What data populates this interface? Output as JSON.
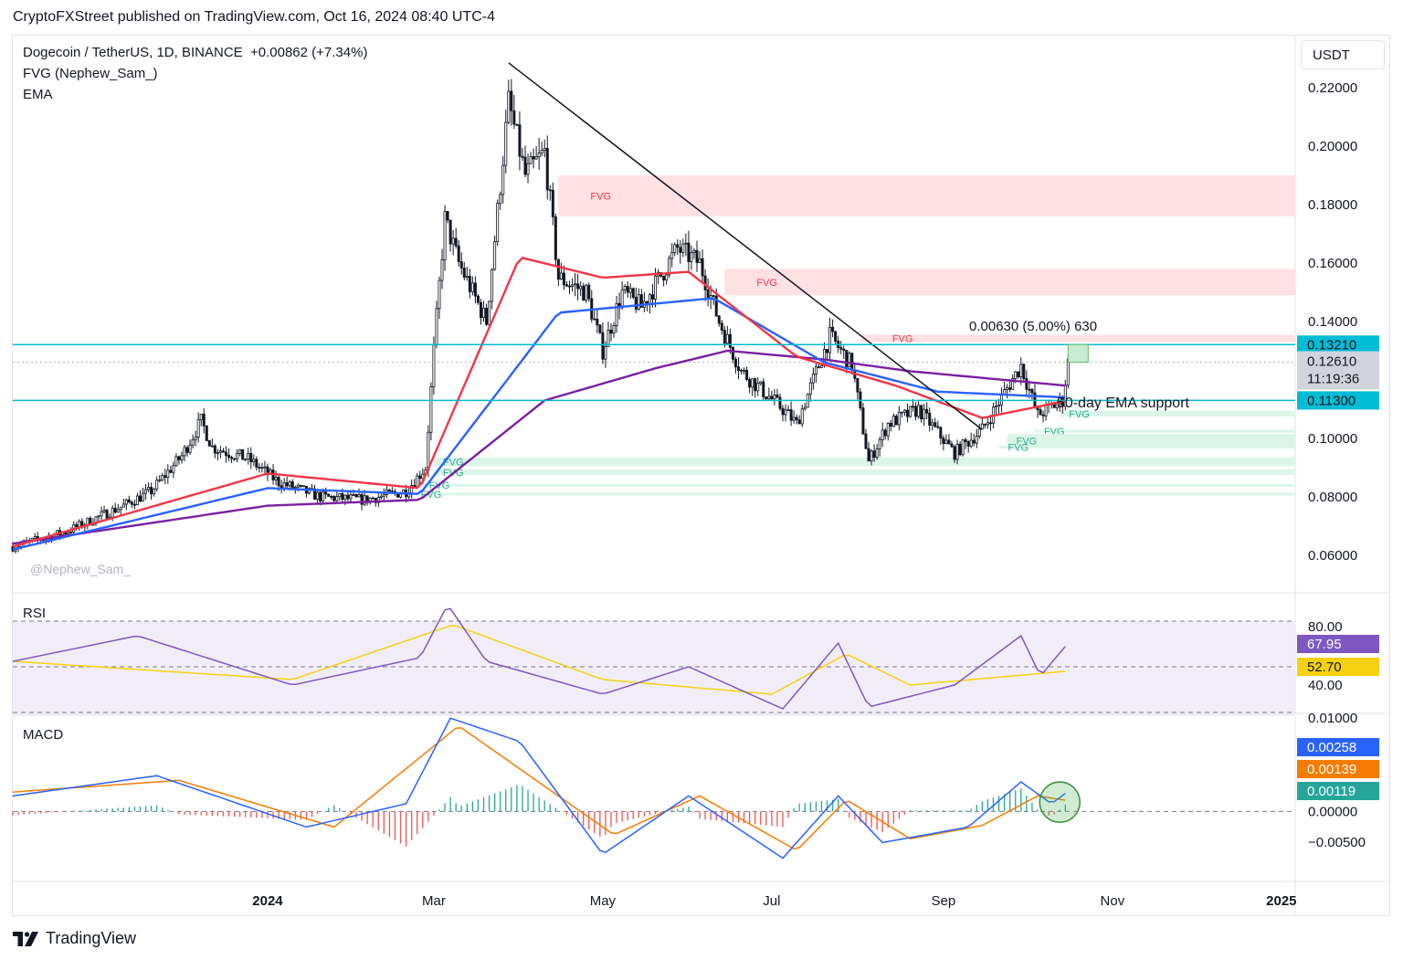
{
  "header": "CryptoFXStreet published on TradingView.com, Oct 16, 2024 08:40 UTC-4",
  "legend": {
    "symbol": "Dogecoin / TetherUS, 1D, BINANCE",
    "change": "+0.00862 (+7.34%)",
    "indicator1": "FVG (Nephew_Sam_)",
    "indicator2": "EMA"
  },
  "currency": "USDT",
  "watermark": "@Nephew_Sam_",
  "annotations": {
    "measure": "0.00630 (5.00%) 630",
    "support": "50-day EMA support"
  },
  "rsi_label": "RSI",
  "macd_label": "MACD",
  "footer_brand": "TradingView",
  "colors": {
    "up": "#131722",
    "down": "#131722",
    "ema_red": "#f23645",
    "ema_blue": "#2962ff",
    "ema_purple": "#7b1fa2",
    "fvg_bear": "#ffe0e3",
    "fvg_bull": "#dcf5e8",
    "hline": "#00bcd4",
    "rsi_line": "#7e57c2",
    "rsi_ma": "#f5d10f",
    "macd_line": "#2962ff",
    "signal_line": "#f57c00",
    "hist_up": "#26a69a",
    "hist_down": "#ef5350"
  },
  "chart_data": [
    {
      "type": "candlestick",
      "title": "Dogecoin / TetherUS, 1D, BINANCE",
      "x_range": [
        "2023-10-01",
        "2025-01-06"
      ],
      "x_ticks": [
        "2024",
        "Mar",
        "May",
        "Jul",
        "Sep",
        "Nov",
        "2025"
      ],
      "ylim": [
        0.05,
        0.235
      ],
      "y_ticks": [
        "0.22000",
        "0.20000",
        "0.18000",
        "0.16000",
        "0.14000",
        "0.10000",
        "0.08000",
        "0.06000"
      ],
      "close_path": [
        [
          "2023-10-01",
          0.063
        ],
        [
          "2023-10-20",
          0.068
        ],
        [
          "2023-11-10",
          0.077
        ],
        [
          "2023-11-20",
          0.082
        ],
        [
          "2023-12-01",
          0.094
        ],
        [
          "2023-12-08",
          0.106
        ],
        [
          "2023-12-12",
          0.097
        ],
        [
          "2023-12-25",
          0.093
        ],
        [
          "2024-01-05",
          0.085
        ],
        [
          "2024-01-20",
          0.08
        ],
        [
          "2024-02-05",
          0.079
        ],
        [
          "2024-02-20",
          0.082
        ],
        [
          "2024-02-27",
          0.09
        ],
        [
          "2024-03-01",
          0.13
        ],
        [
          "2024-03-05",
          0.175
        ],
        [
          "2024-03-10",
          0.16
        ],
        [
          "2024-03-20",
          0.14
        ],
        [
          "2024-03-28",
          0.215
        ],
        [
          "2024-04-03",
          0.19
        ],
        [
          "2024-04-10",
          0.198
        ],
        [
          "2024-04-15",
          0.155
        ],
        [
          "2024-04-25",
          0.15
        ],
        [
          "2024-05-01",
          0.13
        ],
        [
          "2024-05-08",
          0.15
        ],
        [
          "2024-05-15",
          0.145
        ],
        [
          "2024-05-28",
          0.165
        ],
        [
          "2024-06-05",
          0.16
        ],
        [
          "2024-06-12",
          0.14
        ],
        [
          "2024-06-20",
          0.123
        ],
        [
          "2024-07-05",
          0.11
        ],
        [
          "2024-07-10",
          0.105
        ],
        [
          "2024-07-22",
          0.135
        ],
        [
          "2024-07-30",
          0.125
        ],
        [
          "2024-08-05",
          0.092
        ],
        [
          "2024-08-12",
          0.105
        ],
        [
          "2024-08-23",
          0.11
        ],
        [
          "2024-09-05",
          0.095
        ],
        [
          "2024-09-15",
          0.103
        ],
        [
          "2024-09-29",
          0.125
        ],
        [
          "2024-10-05",
          0.108
        ],
        [
          "2024-10-14",
          0.113
        ],
        [
          "2024-10-16",
          0.1261
        ]
      ],
      "ema_50": [
        [
          "2023-10-01",
          0.063
        ],
        [
          "2024-01-01",
          0.088
        ],
        [
          "2024-02-25",
          0.083
        ],
        [
          "2024-04-01",
          0.162
        ],
        [
          "2024-05-01",
          0.155
        ],
        [
          "2024-06-01",
          0.157
        ],
        [
          "2024-07-10",
          0.128
        ],
        [
          "2024-08-15",
          0.118
        ],
        [
          "2024-09-15",
          0.107
        ],
        [
          "2024-10-16",
          0.113
        ]
      ],
      "ema_100": [
        [
          "2023-10-01",
          0.062
        ],
        [
          "2024-01-01",
          0.083
        ],
        [
          "2024-02-25",
          0.081
        ],
        [
          "2024-04-15",
          0.143
        ],
        [
          "2024-06-10",
          0.148
        ],
        [
          "2024-07-20",
          0.126
        ],
        [
          "2024-08-30",
          0.116
        ],
        [
          "2024-10-16",
          0.114
        ]
      ],
      "ema_200": [
        [
          "2023-10-01",
          0.064
        ],
        [
          "2024-01-01",
          0.077
        ],
        [
          "2024-02-25",
          0.079
        ],
        [
          "2024-04-10",
          0.113
        ],
        [
          "2024-05-20",
          0.124
        ],
        [
          "2024-06-15",
          0.13
        ],
        [
          "2024-07-20",
          0.127
        ],
        [
          "2024-08-20",
          0.123
        ],
        [
          "2024-10-16",
          0.118
        ]
      ],
      "trendline": [
        [
          "2024-03-28",
          0.2285
        ],
        [
          "2024-09-15",
          0.103
        ]
      ],
      "hlines": [
        0.1321,
        0.113
      ],
      "price_tags": {
        "upper": "0.13210",
        "last": "0.12610",
        "countdown": "11:19:36",
        "lower": "0.11300"
      },
      "fvg_bear": [
        {
          "from": "2024-04-15",
          "top": 0.19,
          "bottom": 0.176,
          "label": "FVG"
        },
        {
          "from": "2024-06-14",
          "top": 0.158,
          "bottom": 0.149,
          "label": "FVG"
        },
        {
          "from": "2024-08-02",
          "top": 0.1355,
          "bottom": 0.133,
          "label": "FVG"
        }
      ],
      "fvg_bull": [
        {
          "from": "2024-10-13",
          "top": 0.1095,
          "bottom": 0.1075,
          "label": "FVG"
        },
        {
          "from": "2024-10-04",
          "top": 0.103,
          "bottom": 0.102,
          "label": "FVG"
        },
        {
          "from": "2024-09-24",
          "top": 0.1015,
          "bottom": 0.097,
          "label": "FVG"
        },
        {
          "from": "2024-09-21",
          "top": 0.0975,
          "bottom": 0.0965,
          "label": "FVG"
        },
        {
          "from": "2024-03-01",
          "top": 0.0935,
          "bottom": 0.0905,
          "label": "FVG"
        },
        {
          "from": "2024-03-01",
          "top": 0.0895,
          "bottom": 0.0875,
          "label": "FVG"
        },
        {
          "from": "2024-02-25",
          "top": 0.0845,
          "bottom": 0.0835,
          "label": "FVG"
        },
        {
          "from": "2024-02-22",
          "top": 0.0815,
          "bottom": 0.0805,
          "label": "FVG"
        }
      ]
    },
    {
      "type": "line",
      "title": "RSI",
      "ylim": [
        30,
        90
      ],
      "y_ticks": [
        "80.00",
        "40.00"
      ],
      "series": [
        {
          "values": [
            [
              "2023-10-01",
              58
            ],
            [
              "2023-11-15",
              72
            ],
            [
              "2024-01-10",
              45
            ],
            [
              "2024-02-25",
              60
            ],
            [
              "2024-03-06",
              89
            ],
            [
              "2024-03-20",
              58
            ],
            [
              "2024-05-01",
              40
            ],
            [
              "2024-06-01",
              55
            ],
            [
              "2024-07-05",
              32
            ],
            [
              "2024-07-25",
              68
            ],
            [
              "2024-08-05",
              33
            ],
            [
              "2024-09-05",
              45
            ],
            [
              "2024-09-29",
              72
            ],
            [
              "2024-10-06",
              50
            ],
            [
              "2024-10-16",
              67.95
            ]
          ]
        },
        {
          "values": [
            [
              "2023-10-01",
              58
            ],
            [
              "2024-01-10",
              48
            ],
            [
              "2024-03-08",
              78
            ],
            [
              "2024-05-01",
              48
            ],
            [
              "2024-07-01",
              40
            ],
            [
              "2024-07-28",
              62
            ],
            [
              "2024-08-20",
              45
            ],
            [
              "2024-10-16",
              52.7
            ]
          ]
        }
      ],
      "value_tags": [
        "67.95",
        "52.70"
      ]
    },
    {
      "type": "line",
      "title": "MACD",
      "ylim": [
        -0.009,
        0.0125
      ],
      "y_ticks": [
        "0.01000",
        "0.00000",
        "−0.00500"
      ],
      "series": [
        {
          "values": [
            [
              "2023-10-01",
              0.002
            ],
            [
              "2023-11-22",
              0.0046
            ],
            [
              "2024-01-15",
              -0.002
            ],
            [
              "2024-02-20",
              0.001
            ],
            [
              "2024-03-07",
              0.012
            ],
            [
              "2024-04-01",
              0.009
            ],
            [
              "2024-05-01",
              -0.0055
            ],
            [
              "2024-06-01",
              0.002
            ],
            [
              "2024-07-05",
              -0.006
            ],
            [
              "2024-07-25",
              0.002
            ],
            [
              "2024-08-10",
              -0.004
            ],
            [
              "2024-09-10",
              -0.002
            ],
            [
              "2024-09-29",
              0.0038
            ],
            [
              "2024-10-10",
              0.001
            ],
            [
              "2024-10-16",
              0.00258
            ]
          ]
        },
        {
          "values": [
            [
              "2023-10-01",
              0.0025
            ],
            [
              "2023-11-30",
              0.004
            ],
            [
              "2024-01-25",
              -0.002
            ],
            [
              "2024-03-10",
              0.011
            ],
            [
              "2024-05-05",
              -0.003
            ],
            [
              "2024-06-05",
              0.002
            ],
            [
              "2024-07-10",
              -0.005
            ],
            [
              "2024-07-28",
              0.0015
            ],
            [
              "2024-08-20",
              -0.0035
            ],
            [
              "2024-09-15",
              -0.0018
            ],
            [
              "2024-10-05",
              0.002
            ],
            [
              "2024-10-16",
              0.00139
            ]
          ]
        }
      ],
      "value_tags": [
        "0.00258",
        "0.00139",
        "0.00119"
      ]
    }
  ]
}
